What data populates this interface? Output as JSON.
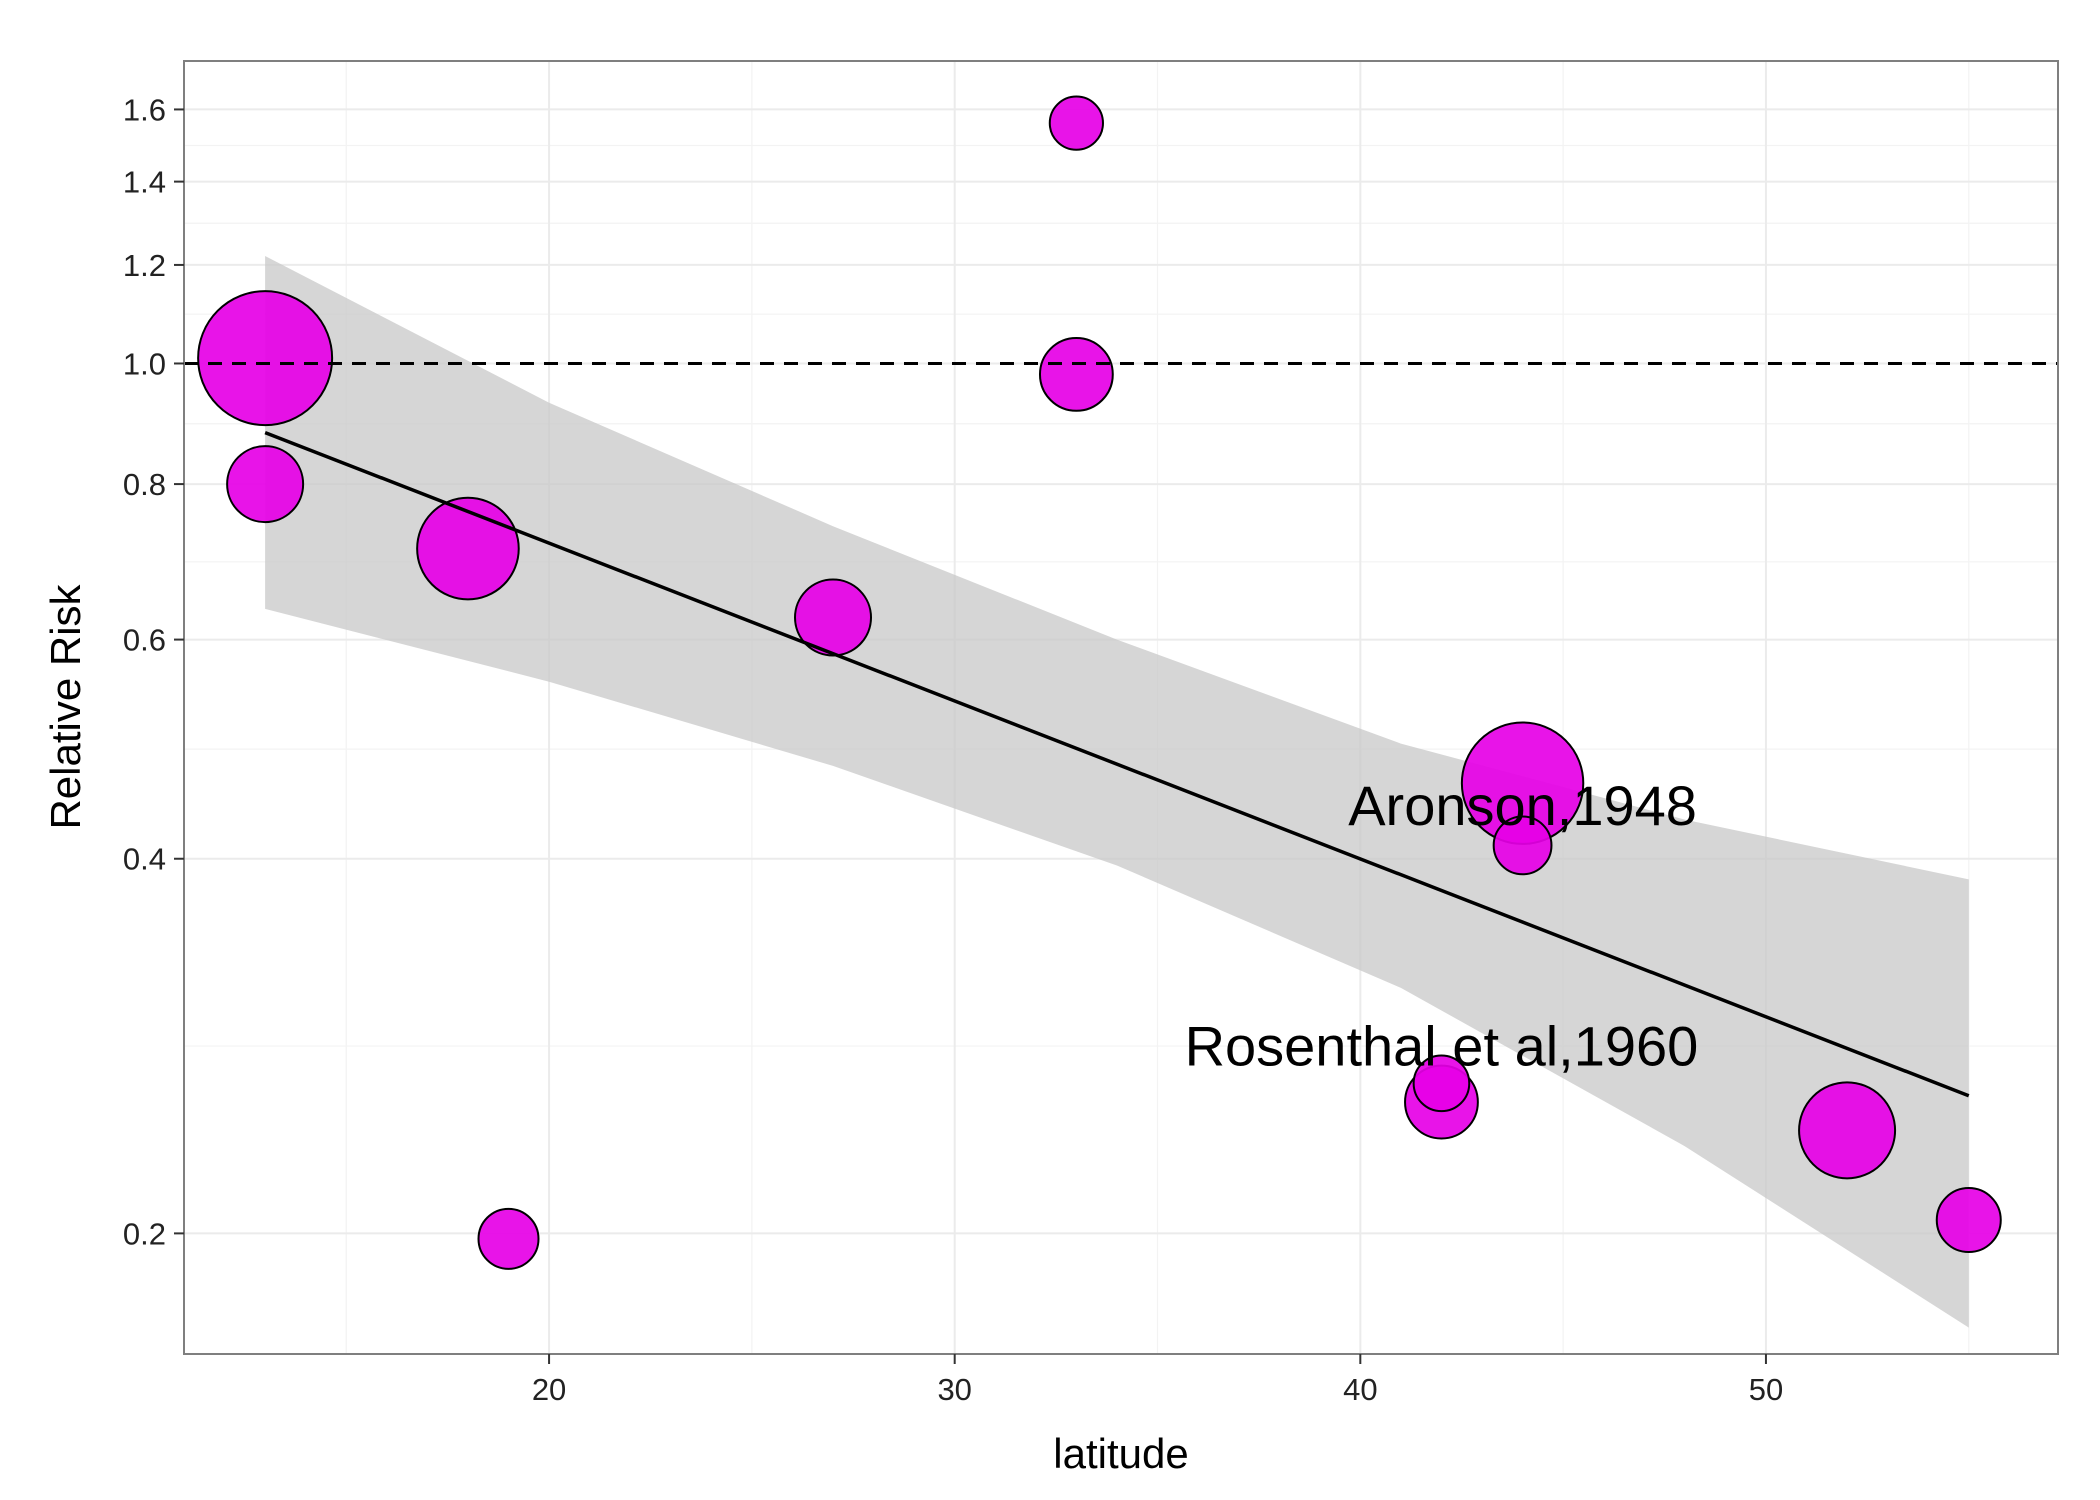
{
  "chart_data": {
    "type": "scatter",
    "title": "",
    "xlabel": "latitude",
    "ylabel": "Relative Risk",
    "x_ticks": [
      20,
      30,
      40,
      50
    ],
    "y_ticks": [
      0.2,
      0.4,
      0.6,
      0.8,
      1.0,
      1.2,
      1.4,
      1.6
    ],
    "y_tick_labels": [
      "0.2",
      "0.4",
      "0.6",
      "0.8",
      "1.0",
      "1.2",
      "1.4",
      "1.6"
    ],
    "y_scale": "log",
    "xlim": [
      11,
      57.2
    ],
    "ylim": [
      0.16,
      1.75
    ],
    "grid": true,
    "reference_line": {
      "y": 1.0,
      "style": "dashed"
    },
    "points": [
      {
        "x": 13,
        "y": 1.01,
        "size": 15
      },
      {
        "x": 13,
        "y": 0.8,
        "size": 4
      },
      {
        "x": 18,
        "y": 0.71,
        "size": 8
      },
      {
        "x": 19,
        "y": 0.198,
        "size": 2.2
      },
      {
        "x": 27,
        "y": 0.625,
        "size": 4
      },
      {
        "x": 33,
        "y": 1.56,
        "size": 1.6
      },
      {
        "x": 33,
        "y": 0.98,
        "size": 3.6
      },
      {
        "x": 42,
        "y": 0.264,
        "size": 1.8
      },
      {
        "x": 42,
        "y": 0.255,
        "size": 3.6
      },
      {
        "x": 44,
        "y": 0.46,
        "size": 12
      },
      {
        "x": 44,
        "y": 0.41,
        "size": 2
      },
      {
        "x": 52,
        "y": 0.242,
        "size": 7
      },
      {
        "x": 55,
        "y": 0.205,
        "size": 2.6
      }
    ],
    "fit_line": {
      "x": [
        13,
        55
      ],
      "y": [
        0.88,
        0.258
      ]
    },
    "confidence_band": {
      "x": [
        13,
        20,
        27,
        34,
        41,
        48,
        55
      ],
      "upper": [
        1.22,
        0.93,
        0.74,
        0.6,
        0.495,
        0.43,
        0.385
      ],
      "lower": [
        0.635,
        0.555,
        0.475,
        0.395,
        0.315,
        0.235,
        0.168
      ]
    },
    "annotations": [
      {
        "text": "Aronson,1948",
        "x": 44,
        "y": 0.44
      },
      {
        "text": "Rosenthal et al,1960",
        "x": 42,
        "y": 0.282
      }
    ],
    "colors": {
      "point_fill": "#e600e6",
      "point_stroke": "#000000",
      "band": "#c8c8c8",
      "fit_line": "#000000",
      "grid": "#ebebeb"
    }
  }
}
